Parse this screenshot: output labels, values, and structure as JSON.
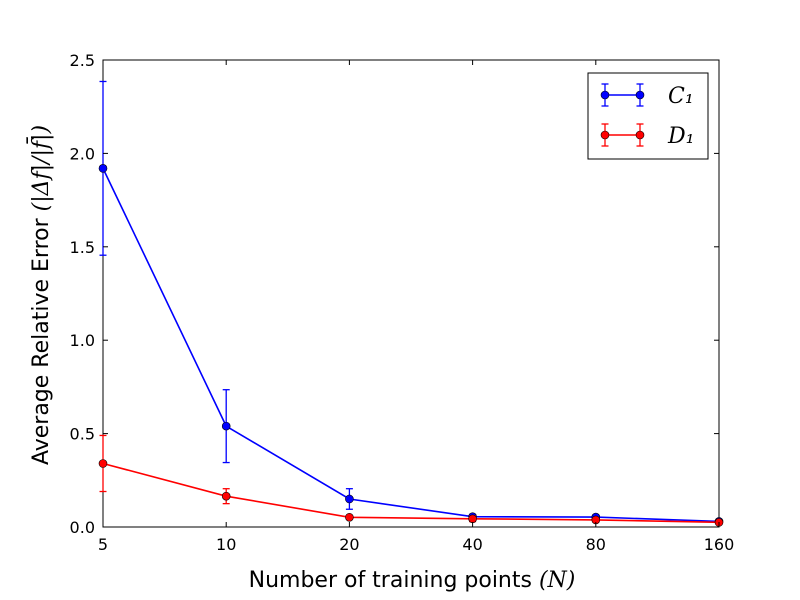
{
  "chart_data": {
    "type": "line",
    "x_scale": "log2",
    "categories": [
      5,
      10,
      20,
      40,
      80,
      160
    ],
    "x_tick_labels": [
      "5",
      "10",
      "20",
      "40",
      "80",
      "160"
    ],
    "y_tick_labels": [
      "0.0",
      "0.5",
      "1.0",
      "1.5",
      "2.0",
      "2.5"
    ],
    "ylim": [
      0,
      2.5
    ],
    "xlabel_text": "Number of training points ",
    "xlabel_math": "(N)",
    "ylabel_text": "Average Relative Error ",
    "ylabel_math": "(|Δf|/|f̄|)",
    "grid": false,
    "legend_position": "top-right",
    "series": [
      {
        "name": "C₁",
        "color": "#0000ff",
        "values": [
          1.92,
          0.54,
          0.15,
          0.055,
          0.053,
          0.03
        ],
        "err": [
          0.465,
          0.195,
          0.055,
          0.012,
          0.01,
          0.006
        ]
      },
      {
        "name": "D₁",
        "color": "#ff0000",
        "values": [
          0.34,
          0.165,
          0.052,
          0.044,
          0.038,
          0.025
        ],
        "err": [
          0.15,
          0.04,
          0.008,
          0.015,
          0.012,
          0.006
        ]
      }
    ]
  }
}
